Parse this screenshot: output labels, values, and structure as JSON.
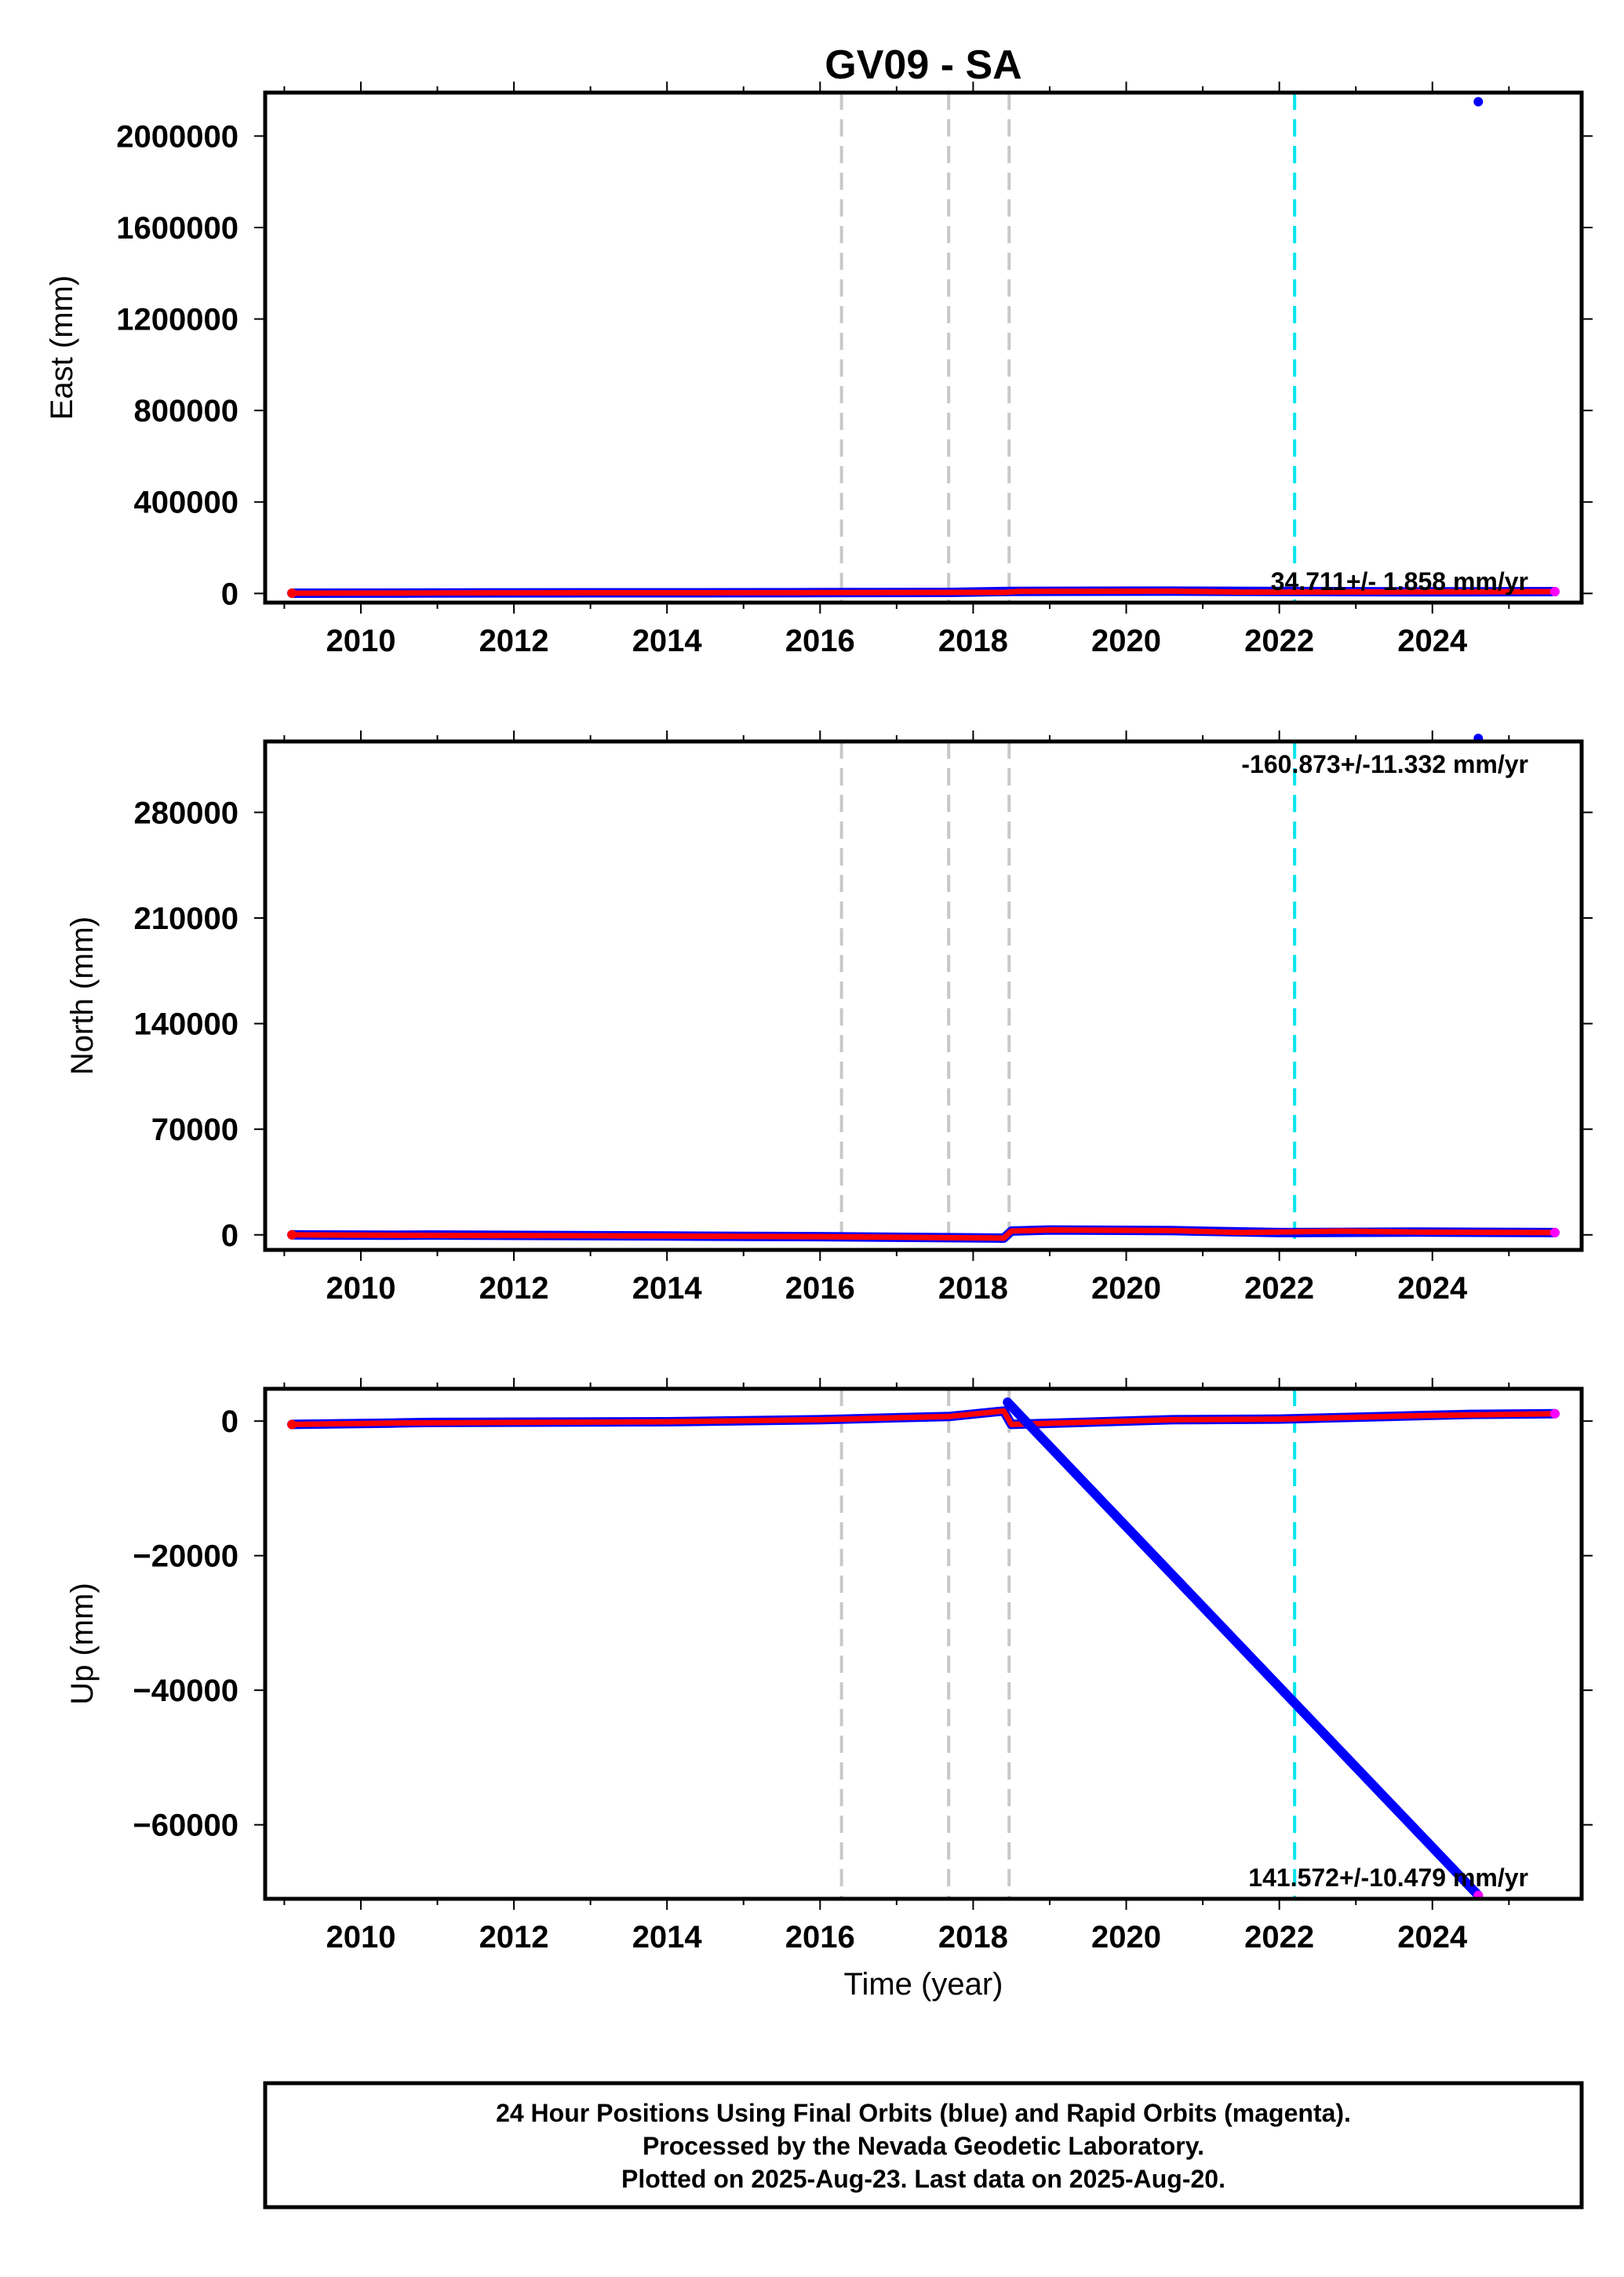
{
  "chart_data": [
    {
      "type": "scatter",
      "title": "GV09 - SA",
      "ylabel": "East (mm)",
      "xlabel": "",
      "xlim": [
        2008.75,
        2025.95
      ],
      "ylim": [
        -40000,
        2190000
      ],
      "x_ticks": [
        "2010",
        "2012",
        "2014",
        "2016",
        "2018",
        "2020",
        "2022",
        "2024"
      ],
      "y_ticks": [
        "0",
        "400000",
        "800000",
        "1200000",
        "1600000",
        "2000000"
      ],
      "grid": false,
      "rate_text": "34.711+/- 1.858 mm/yr",
      "series": [
        {
          "color": "#0000ff",
          "values": [
            [
              2009.1,
              1000
            ],
            [
              2010.4,
              1500
            ],
            [
              2010.9,
              2000
            ],
            [
              2012,
              2500
            ],
            [
              2014,
              3000
            ],
            [
              2016,
              3500
            ],
            [
              2017.7,
              4500
            ],
            [
              2018.5,
              9000
            ],
            [
              2019,
              9500
            ],
            [
              2020.6,
              10000
            ],
            [
              2023.8,
              7000
            ],
            [
              2024.5,
              7500
            ],
            [
              2025.6,
              8000
            ]
          ]
        },
        {
          "color": "#ff0000",
          "values": [
            [
              2009.1,
              1000
            ],
            [
              2010.4,
              1500
            ],
            [
              2012,
              2500
            ],
            [
              2014,
              3000
            ],
            [
              2016,
              3500
            ],
            [
              2018.4,
              4500
            ],
            [
              2018.6,
              9000
            ],
            [
              2020.6,
              10000
            ],
            [
              2021.5,
              6000
            ],
            [
              2022.5,
              6500
            ],
            [
              2023.8,
              7000
            ],
            [
              2025.6,
              8000
            ]
          ]
        },
        {
          "color": "#0000ff",
          "values": [
            [
              2024.6,
              2150000
            ]
          ]
        }
      ]
    },
    {
      "type": "scatter",
      "title": "",
      "ylabel": "North (mm)",
      "xlabel": "",
      "xlim": [
        2008.75,
        2025.95
      ],
      "ylim": [
        -10000,
        327000
      ],
      "x_ticks": [
        "2010",
        "2012",
        "2014",
        "2016",
        "2018",
        "2020",
        "2022",
        "2024"
      ],
      "y_ticks": [
        "0",
        "70000",
        "140000",
        "210000",
        "280000"
      ],
      "grid": false,
      "rate_text": "-160.873+/-11.332 mm/yr",
      "series": [
        {
          "color": "#0000ff",
          "values": [
            [
              2009.1,
              0
            ],
            [
              2010.4,
              -300
            ],
            [
              2010.9,
              -100
            ],
            [
              2014,
              -800
            ],
            [
              2016,
              -1200
            ],
            [
              2018.4,
              -2200
            ],
            [
              2018.5,
              2500
            ],
            [
              2019,
              3200
            ],
            [
              2020.6,
              2800
            ],
            [
              2022,
              1500
            ],
            [
              2023.8,
              1800
            ],
            [
              2025.6,
              1500
            ]
          ]
        },
        {
          "color": "#ff0000",
          "values": [
            [
              2009.1,
              0
            ],
            [
              2010.4,
              -300
            ],
            [
              2014,
              -800
            ],
            [
              2016,
              -1200
            ],
            [
              2018.4,
              -2200
            ],
            [
              2018.5,
              2500
            ],
            [
              2019,
              3200
            ],
            [
              2020.6,
              2800
            ],
            [
              2021.5,
              1500
            ],
            [
              2022.8,
              2500
            ],
            [
              2023.8,
              1800
            ],
            [
              2025.6,
              1500
            ]
          ]
        },
        {
          "color": "#0000ff",
          "values": [
            [
              2024.6,
              329000
            ]
          ]
        }
      ]
    },
    {
      "type": "scatter",
      "title": "",
      "ylabel": "Up (mm)",
      "xlabel": "Time (year)",
      "xlim": [
        2008.75,
        2025.95
      ],
      "ylim": [
        -71000,
        4800
      ],
      "x_ticks": [
        "2010",
        "2012",
        "2014",
        "2016",
        "2018",
        "2020",
        "2022",
        "2024"
      ],
      "y_ticks": [
        "0",
        "−20000",
        "−40000",
        "−60000"
      ],
      "grid": false,
      "rate_text": "141.572+/-10.479 mm/yr",
      "series": [
        {
          "color": "#0000ff",
          "values": [
            [
              2009.1,
              -500
            ],
            [
              2010.4,
              -300
            ],
            [
              2010.9,
              -200
            ],
            [
              2014,
              -100
            ],
            [
              2016,
              200
            ],
            [
              2017.7,
              700
            ],
            [
              2018.4,
              1500
            ],
            [
              2018.5,
              -500
            ],
            [
              2020.6,
              200
            ],
            [
              2022,
              300
            ],
            [
              2023.8,
              800
            ],
            [
              2024.5,
              1000
            ],
            [
              2025.6,
              1100
            ]
          ]
        },
        {
          "color": "#ff0000",
          "values": [
            [
              2009.1,
              -500
            ],
            [
              2010.4,
              -300
            ],
            [
              2014,
              -100
            ],
            [
              2016,
              200
            ],
            [
              2017.7,
              700
            ],
            [
              2018.4,
              1500
            ],
            [
              2018.5,
              -500
            ],
            [
              2020.6,
              200
            ],
            [
              2022,
              300
            ],
            [
              2023.8,
              800
            ],
            [
              2025.6,
              1100
            ]
          ]
        },
        {
          "color": "#0000ff",
          "values": [
            [
              2018.45,
              2800
            ],
            [
              2024.6,
              -70500
            ]
          ]
        }
      ]
    }
  ],
  "event_lines": {
    "gray": [
      2016.28,
      2017.68,
      2018.47
    ],
    "cyan": [
      2022.2
    ]
  },
  "footer": {
    "line1": "24 Hour Positions Using Final Orbits (blue) and Rapid Orbits (magenta).",
    "line2": "Processed by the Nevada Geodetic Laboratory.",
    "line3": "Plotted on 2025-Aug-23. Last data on 2025-Aug-20."
  },
  "colors": {
    "final_orbits": "#0000ff",
    "rapid_orbits": "#ff00ff",
    "fit_line": "#ff0000",
    "event_gray": "#c8c8c8",
    "event_cyan": "#00e5ee"
  }
}
